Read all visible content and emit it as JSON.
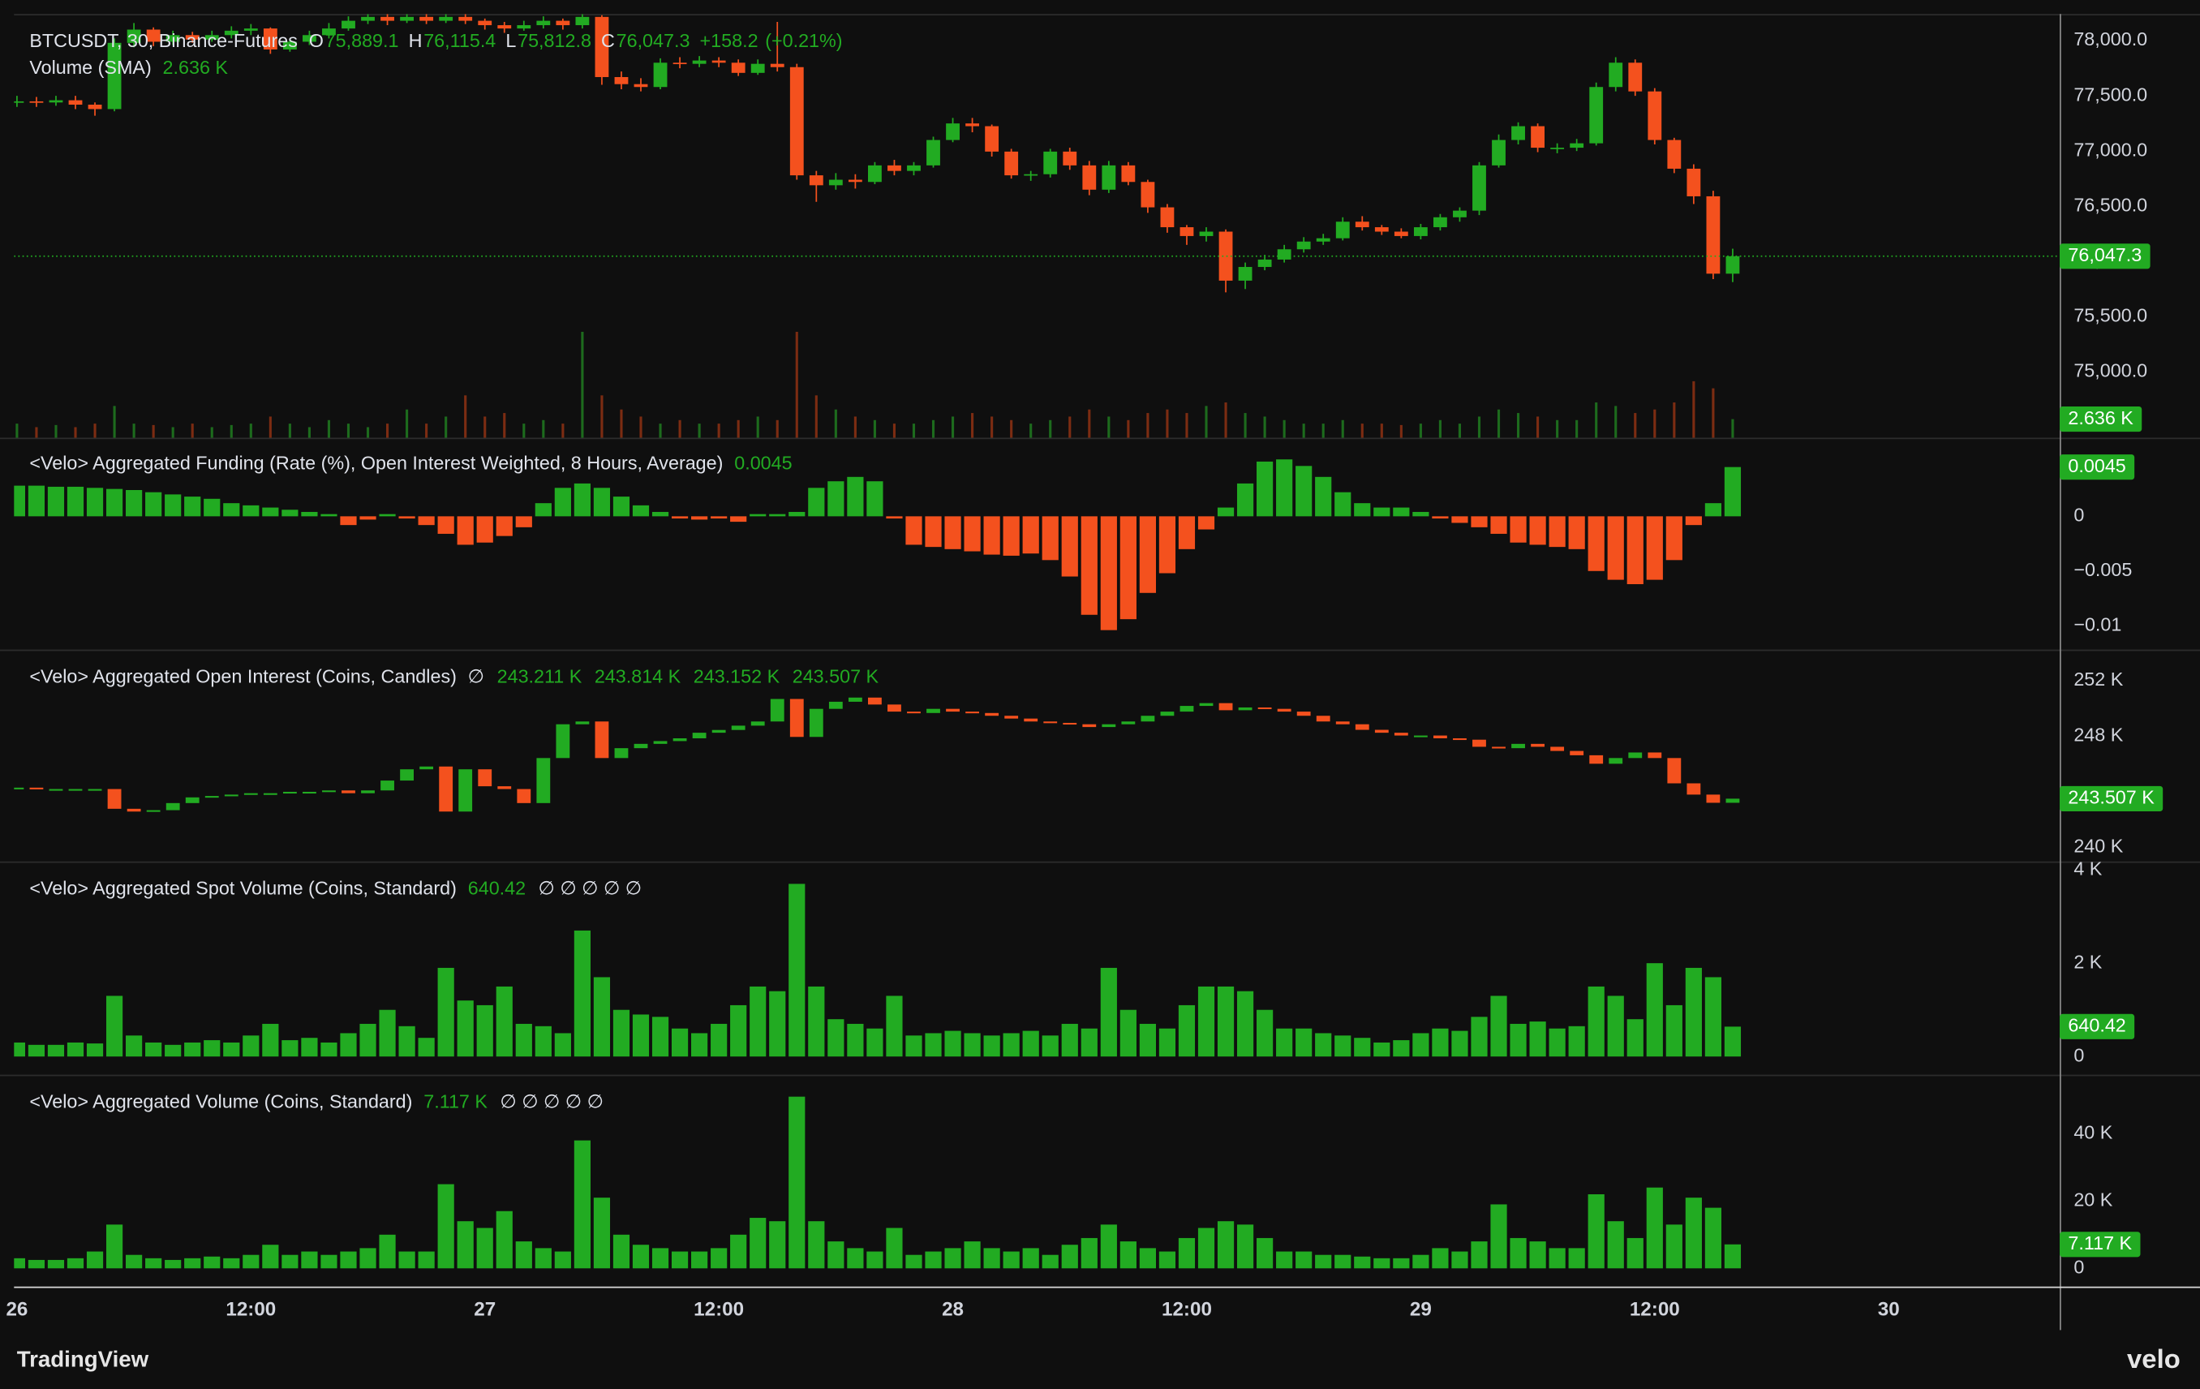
{
  "chart_data": {
    "type": "candlestick",
    "x": [
      0,
      1,
      2,
      3,
      4,
      5,
      6,
      7,
      8,
      9,
      10,
      11,
      12,
      13,
      14,
      15,
      16,
      17,
      18,
      19,
      20,
      21,
      22,
      23,
      24,
      25,
      26,
      27,
      28,
      29,
      30,
      31,
      32,
      33,
      34,
      35,
      36,
      37,
      38,
      39,
      40,
      41,
      42,
      43,
      44,
      45,
      46,
      47,
      48,
      49,
      50,
      51,
      52,
      53,
      54,
      55,
      56,
      57,
      58,
      59,
      60,
      61,
      62,
      63,
      64,
      65,
      66,
      67,
      68,
      69,
      70,
      71,
      72,
      73,
      74,
      75,
      76,
      77,
      78,
      79,
      80,
      81,
      82,
      83,
      84,
      85,
      86,
      87,
      88
    ],
    "xlim": [
      -0.15,
      104.7
    ],
    "xticks": [
      {
        "value": 0,
        "label": "26"
      },
      {
        "value": 12,
        "label": "12:00"
      },
      {
        "value": 24,
        "label": "27"
      },
      {
        "value": 36,
        "label": "12:00"
      },
      {
        "value": 48,
        "label": "28"
      },
      {
        "value": 60,
        "label": "12:00"
      },
      {
        "value": 72,
        "label": "29"
      },
      {
        "value": 84,
        "label": "12:00"
      },
      {
        "value": 96,
        "label": "30"
      }
    ],
    "panels": [
      {
        "type": "candlestick",
        "title": "BTCUSDT, 30, Binance-Futures",
        "up_color": "#22ab22",
        "down_color": "#f4511e",
        "close": [
          77450,
          77440,
          77460,
          77420,
          77380,
          77980,
          78100,
          77990,
          78050,
          78010,
          78050,
          78090,
          78110,
          77920,
          77990,
          78050,
          78110,
          78180,
          78215,
          78180,
          78215,
          78180,
          78215,
          78180,
          78140,
          78110,
          78140,
          78180,
          78140,
          78215,
          77670,
          77606,
          77580,
          77800,
          77790,
          77820,
          77800,
          77708,
          77790,
          77760,
          76780,
          76690,
          76740,
          76720,
          76870,
          76820,
          76870,
          77100,
          77250,
          77225,
          76995,
          76780,
          76790,
          76995,
          76870,
          76650,
          76870,
          76720,
          76490,
          76310,
          76230,
          76270,
          75826,
          75950,
          76017,
          76110,
          76180,
          76210,
          76360,
          76310,
          76270,
          76230,
          76310,
          76400,
          76460,
          76870,
          77100,
          77225,
          77030,
          77030,
          77070,
          77580,
          77800,
          77540,
          77100,
          76840,
          76590,
          75889.1,
          76047.3
        ],
        "high": [
          77500,
          77490,
          77500,
          77500,
          77440,
          78020,
          78160,
          78120,
          78090,
          78080,
          78090,
          78130,
          78150,
          78120,
          78020,
          78090,
          78160,
          78220,
          78240,
          78240,
          78240,
          78240,
          78240,
          78240,
          78200,
          78170,
          78180,
          78220,
          78200,
          78240,
          78230,
          77720,
          77660,
          77840,
          77850,
          77860,
          77850,
          77830,
          77830,
          78170,
          77790,
          76820,
          76800,
          76790,
          76900,
          76920,
          76900,
          77130,
          77300,
          77300,
          77240,
          77020,
          76820,
          77020,
          77030,
          76910,
          76910,
          76900,
          76740,
          76520,
          76330,
          76310,
          76290,
          75990,
          76060,
          76150,
          76220,
          76250,
          76400,
          76410,
          76330,
          76300,
          76340,
          76430,
          76490,
          76900,
          77150,
          77260,
          77250,
          77070,
          77110,
          77620,
          77850,
          77830,
          77570,
          77120,
          76880,
          76640,
          76115.4
        ],
        "low": [
          77400,
          77400,
          77410,
          77380,
          77320,
          77360,
          77940,
          77950,
          77960,
          77980,
          77990,
          78020,
          78050,
          77880,
          77900,
          77960,
          78020,
          78090,
          78150,
          78140,
          78160,
          78150,
          78160,
          78150,
          78100,
          78070,
          78090,
          78110,
          78100,
          78110,
          77600,
          77560,
          77540,
          77560,
          77750,
          77760,
          77760,
          77680,
          77690,
          77720,
          76740,
          76540,
          76650,
          76660,
          76700,
          76780,
          76780,
          76850,
          77080,
          77170,
          76950,
          76750,
          76730,
          76760,
          76830,
          76600,
          76620,
          76690,
          76440,
          76260,
          76150,
          76180,
          75720,
          75750,
          75920,
          75990,
          76080,
          76150,
          76190,
          76280,
          76240,
          76210,
          76200,
          76280,
          76360,
          76420,
          76850,
          77060,
          76990,
          76980,
          77000,
          77050,
          77540,
          77500,
          77060,
          76800,
          76520,
          75840,
          75812.8
        ],
        "ylim": [
          74403,
          78241
        ],
        "yticks": [
          {
            "value": 75000,
            "label": "75,000.0"
          },
          {
            "value": 75500,
            "label": "75,500.0"
          },
          {
            "value": 76000,
            "label": "76,000.0"
          },
          {
            "value": 76500,
            "label": "76,500.0"
          },
          {
            "value": 77000,
            "label": "77,000.0"
          },
          {
            "value": 77500,
            "label": "77,500.0"
          },
          {
            "value": 78000,
            "label": "78,000.0"
          }
        ],
        "legend": {
          "labels": [
            "O",
            "H",
            "L",
            "C"
          ],
          "values": [
            75889.1,
            76115.4,
            75812.8,
            76047.3
          ],
          "value_labels": [
            "75,889.1",
            "76,115.4",
            "75,812.8",
            "76,047.3"
          ],
          "change": 158.2,
          "change_label": "+158.2",
          "change_pct": 0.21,
          "change_pct_label": "(+0.21%)"
        },
        "volume": {
          "title": "Volume (SMA)",
          "up_color": "#1d6b1d",
          "down_color": "#7c2c12",
          "ylim": [
            0,
            60000
          ],
          "values": [
            2000,
            1500,
            1800,
            1500,
            2000,
            4500,
            2000,
            1800,
            1500,
            2000,
            1500,
            1800,
            2000,
            3000,
            2000,
            1500,
            2500,
            2000,
            1500,
            2000,
            4000,
            2000,
            3000,
            6000,
            3000,
            3500,
            2000,
            2500,
            2000,
            15000,
            6000,
            4000,
            3000,
            2000,
            2500,
            2000,
            2000,
            2500,
            3000,
            2500,
            15000,
            6000,
            4000,
            3000,
            2500,
            2000,
            2000,
            2500,
            3000,
            3500,
            3000,
            2500,
            2000,
            2500,
            3000,
            4000,
            3000,
            2500,
            3500,
            4000,
            3500,
            4500,
            5000,
            3500,
            3000,
            2500,
            2000,
            2000,
            2500,
            2000,
            2000,
            1800,
            2000,
            2500,
            2000,
            3000,
            4000,
            3500,
            3000,
            2500,
            2500,
            5000,
            4500,
            3500,
            4000,
            5000,
            8000,
            7000,
            2636
          ],
          "last_label": "2.636 K"
        }
      },
      {
        "type": "histogram",
        "title": "<Velo> Aggregated Funding (Rate (%), Open Interest Weighted, 8 Hours, Average)",
        "positive_color": "#22ab22",
        "negative_color": "#f4511e",
        "values": [
          0.0028,
          0.0028,
          0.0027,
          0.0027,
          0.0026,
          0.0025,
          0.0024,
          0.0022,
          0.002,
          0.0018,
          0.0016,
          0.0012,
          0.001,
          0.0008,
          0.0006,
          0.0004,
          0.0002,
          -0.0008,
          -0.0003,
          0.0002,
          -0.0002,
          -0.0008,
          -0.0016,
          -0.0026,
          -0.0024,
          -0.0018,
          -0.001,
          0.0012,
          0.0026,
          0.003,
          0.0026,
          0.0018,
          0.001,
          0.0004,
          -0.0002,
          -0.0003,
          -0.0002,
          -0.0005,
          0.0002,
          0.0002,
          0.0004,
          0.0026,
          0.0032,
          0.0036,
          0.0032,
          -0.0002,
          -0.0026,
          -0.0028,
          -0.003,
          -0.0032,
          -0.0035,
          -0.0036,
          -0.0034,
          -0.004,
          -0.0055,
          -0.009,
          -0.0104,
          -0.0094,
          -0.007,
          -0.0052,
          -0.003,
          -0.0012,
          0.0008,
          0.003,
          0.005,
          0.0052,
          0.0046,
          0.0036,
          0.0022,
          0.0012,
          0.0008,
          0.0008,
          0.0004,
          -0.0002,
          -0.0006,
          -0.001,
          -0.0016,
          -0.0024,
          -0.0026,
          -0.0028,
          -0.003,
          -0.005,
          -0.0058,
          -0.0062,
          -0.0058,
          -0.004,
          -0.0008,
          0.0012,
          0.0045
        ],
        "ylim": [
          -0.01218,
          0.00705
        ],
        "yticks": [
          {
            "value": -0.01,
            "label": "−0.01"
          },
          {
            "value": -0.005,
            "label": "−0.005"
          },
          0
        ]
      },
      {
        "type": "close-candles",
        "title": "<Velo> Aggregated Open Interest (Coins, Candles)",
        "na_marker": "∅",
        "up_color": "#22ab22",
        "down_color": "#f4511e",
        "values": [
          244300,
          244200,
          244200,
          244200,
          244200,
          242780,
          242580,
          242680,
          243190,
          243600,
          243700,
          243800,
          243900,
          243900,
          244000,
          244000,
          244100,
          243900,
          244100,
          244810,
          245620,
          245820,
          242580,
          245620,
          244400,
          244200,
          243190,
          246430,
          248860,
          249060,
          246430,
          247140,
          247450,
          247650,
          247850,
          248250,
          248450,
          248760,
          249060,
          250680,
          247950,
          249970,
          250480,
          250780,
          250280,
          249770,
          249670,
          249970,
          249770,
          249670,
          249470,
          249270,
          249060,
          248960,
          248860,
          248660,
          248860,
          249060,
          249470,
          249770,
          250180,
          250380,
          249870,
          250070,
          249970,
          249770,
          249470,
          249060,
          248860,
          248460,
          248250,
          248050,
          248050,
          247850,
          247750,
          247240,
          247140,
          247450,
          247240,
          246940,
          246630,
          246020,
          246430,
          246830,
          246430,
          244610,
          243800,
          243211,
          243507
        ],
        "legend": {
          "values": [
            243211,
            243814,
            243152,
            243507
          ],
          "value_labels": [
            "243.211 K",
            "243.814 K",
            "243.152 K",
            "243.507 K"
          ]
        },
        "ylim": [
          238990,
          254130
        ],
        "yticks": [
          {
            "value": 240000,
            "label": "240 K"
          },
          {
            "value": 248000,
            "label": "248 K"
          },
          {
            "value": 252000,
            "label": "252 K"
          }
        ]
      },
      {
        "type": "bar",
        "title": "<Velo> Aggregated Spot Volume (Coins, Standard)",
        "na_markers": "∅ ∅ ∅ ∅ ∅",
        "color": "#22ab22",
        "values": [
          300,
          250,
          250,
          300,
          280,
          1300,
          450,
          300,
          250,
          300,
          350,
          300,
          450,
          700,
          350,
          400,
          300,
          500,
          700,
          1000,
          650,
          400,
          1900,
          1200,
          1100,
          1500,
          700,
          650,
          500,
          2700,
          1700,
          1000,
          900,
          850,
          600,
          500,
          700,
          1100,
          1500,
          1400,
          3700,
          1500,
          800,
          700,
          600,
          1300,
          450,
          500,
          550,
          500,
          450,
          500,
          550,
          450,
          700,
          600,
          1900,
          1000,
          700,
          600,
          1100,
          1500,
          1500,
          1400,
          1000,
          600,
          600,
          500,
          450,
          400,
          300,
          350,
          500,
          600,
          550,
          850,
          1300,
          700,
          750,
          600,
          650,
          1500,
          1300,
          800,
          2000,
          1100,
          1900,
          1700,
          640.42
        ],
        "ylim": [
          -390,
          4150
        ],
        "yticks": [
          0,
          {
            "value": 2000,
            "label": "2 K"
          },
          {
            "value": 4000,
            "label": "4 K"
          }
        ]
      },
      {
        "type": "bar",
        "title": "<Velo> Aggregated Volume (Coins, Standard)",
        "na_markers": "∅ ∅ ∅ ∅ ∅",
        "color": "#22ab22",
        "values": [
          3000,
          2500,
          2500,
          3000,
          5000,
          13000,
          4000,
          3000,
          2500,
          3000,
          3500,
          3000,
          4000,
          7000,
          4000,
          5000,
          4000,
          5000,
          6000,
          10000,
          5000,
          5000,
          25000,
          14000,
          12000,
          17000,
          8000,
          6000,
          5000,
          38000,
          21000,
          10000,
          7000,
          6000,
          5000,
          5000,
          6000,
          10000,
          15000,
          14000,
          51000,
          14000,
          8000,
          6000,
          5000,
          12000,
          4000,
          5000,
          6000,
          8000,
          6000,
          5000,
          6000,
          4000,
          7000,
          9000,
          13000,
          8000,
          6000,
          5000,
          9000,
          12000,
          14000,
          13000,
          9000,
          5000,
          5000,
          4000,
          4000,
          3500,
          3000,
          3000,
          4000,
          6000,
          5000,
          8000,
          19000,
          9000,
          8000,
          6000,
          6000,
          22000,
          14000,
          9000,
          24000,
          13000,
          21000,
          18000,
          7117
        ],
        "last_label": "7.117 K",
        "ylim": [
          -5000,
          57100
        ],
        "yticks": [
          0,
          {
            "value": 20000,
            "label": "20 K"
          },
          {
            "value": 40000,
            "label": "40 K"
          }
        ]
      }
    ],
    "brand_left": "TradingView",
    "brand_right": "velo"
  }
}
